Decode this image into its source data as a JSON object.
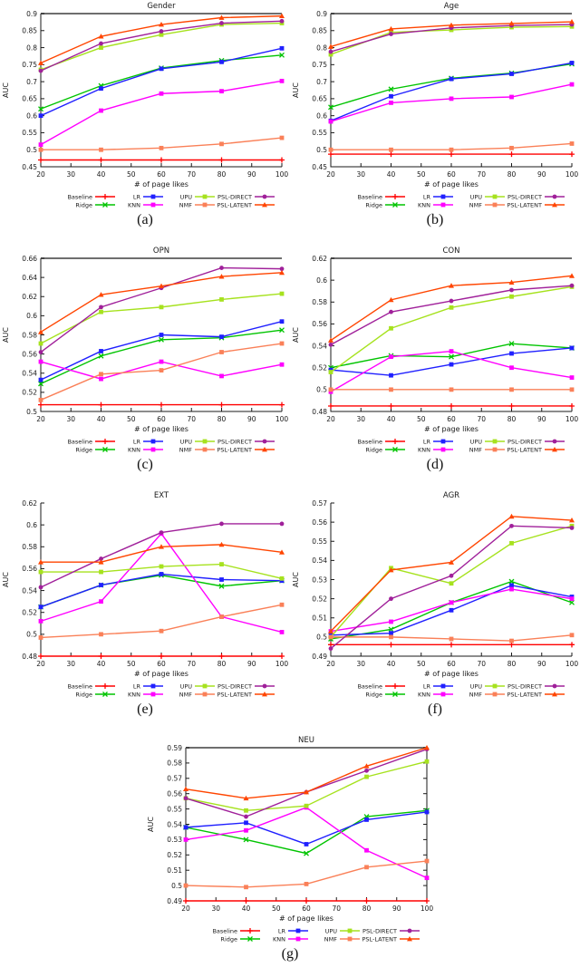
{
  "chart_shared": {
    "xlabel": "# of page likes",
    "ylabel": "AUC",
    "x": [
      20,
      40,
      60,
      80,
      100
    ],
    "xlim": [
      20,
      100
    ],
    "xticks": [
      20,
      30,
      40,
      50,
      60,
      70,
      80,
      90,
      100
    ],
    "grid": "off",
    "legend_position": "bottom",
    "legend_order": [
      "Baseline",
      "Ridge",
      "LR",
      "KNN",
      "UPU",
      "NMF",
      "PSL-DIRECT",
      "PSL-LATENT"
    ],
    "series_styles": {
      "Baseline": {
        "color": "#ff0000",
        "marker": "plus"
      },
      "Ridge": {
        "color": "#00c400",
        "marker": "x"
      },
      "LR": {
        "color": "#2020ff",
        "marker": "square"
      },
      "KNN": {
        "color": "#ff00ff",
        "marker": "square"
      },
      "UPU": {
        "color": "#a6e21e",
        "marker": "square"
      },
      "NMF": {
        "color": "#fa8058",
        "marker": "square"
      },
      "PSL-DIRECT": {
        "color": "#a0209a",
        "marker": "circle"
      },
      "PSL-LATENT": {
        "color": "#ff4500",
        "marker": "triangle"
      }
    },
    "top_border_color": "#6e6e6e"
  },
  "chart_data": [
    {
      "id": "gender",
      "type": "line",
      "title": "Gender",
      "caption": "(a)",
      "ylim": [
        0.45,
        0.9
      ],
      "ystep": 0.05,
      "border": {
        "top": true,
        "right": false
      },
      "series": [
        {
          "name": "Baseline",
          "values": [
            0.47,
            0.47,
            0.47,
            0.47,
            0.47
          ]
        },
        {
          "name": "Ridge",
          "values": [
            0.62,
            0.688,
            0.74,
            0.762,
            0.778
          ]
        },
        {
          "name": "LR",
          "values": [
            0.6,
            0.68,
            0.738,
            0.758,
            0.798
          ]
        },
        {
          "name": "KNN",
          "values": [
            0.515,
            0.615,
            0.665,
            0.672,
            0.702
          ]
        },
        {
          "name": "UPU",
          "values": [
            0.735,
            0.8,
            0.838,
            0.868,
            0.872
          ]
        },
        {
          "name": "NMF",
          "values": [
            0.5,
            0.5,
            0.505,
            0.517,
            0.535
          ]
        },
        {
          "name": "PSL-DIRECT",
          "values": [
            0.732,
            0.812,
            0.848,
            0.872,
            0.878
          ]
        },
        {
          "name": "PSL-LATENT",
          "values": [
            0.755,
            0.833,
            0.868,
            0.888,
            0.893
          ]
        }
      ]
    },
    {
      "id": "age",
      "type": "line",
      "title": "Age",
      "caption": "(b)",
      "ylim": [
        0.45,
        0.9
      ],
      "ystep": 0.05,
      "border": {
        "top": true,
        "right": false
      },
      "series": [
        {
          "name": "Baseline",
          "values": [
            0.487,
            0.487,
            0.487,
            0.487,
            0.487
          ]
        },
        {
          "name": "Ridge",
          "values": [
            0.625,
            0.678,
            0.71,
            0.725,
            0.752
          ]
        },
        {
          "name": "LR",
          "values": [
            0.585,
            0.657,
            0.708,
            0.723,
            0.755
          ]
        },
        {
          "name": "KNN",
          "values": [
            0.583,
            0.638,
            0.65,
            0.655,
            0.692
          ]
        },
        {
          "name": "UPU",
          "values": [
            0.78,
            0.845,
            0.852,
            0.86,
            0.862
          ]
        },
        {
          "name": "NMF",
          "values": [
            0.5,
            0.5,
            0.5,
            0.505,
            0.518
          ]
        },
        {
          "name": "PSL-DIRECT",
          "values": [
            0.788,
            0.84,
            0.858,
            0.865,
            0.868
          ]
        },
        {
          "name": "PSL-LATENT",
          "values": [
            0.803,
            0.855,
            0.866,
            0.871,
            0.876
          ]
        }
      ]
    },
    {
      "id": "opn",
      "type": "line",
      "title": "OPN",
      "caption": "(c)",
      "ylim": [
        0.5,
        0.66
      ],
      "ystep": 0.02,
      "border": {
        "top": true,
        "right": false
      },
      "series": [
        {
          "name": "Baseline",
          "values": [
            0.507,
            0.507,
            0.507,
            0.507,
            0.507
          ]
        },
        {
          "name": "Ridge",
          "values": [
            0.529,
            0.558,
            0.575,
            0.577,
            0.585
          ]
        },
        {
          "name": "LR",
          "values": [
            0.533,
            0.563,
            0.58,
            0.578,
            0.594
          ]
        },
        {
          "name": "KNN",
          "values": [
            0.552,
            0.534,
            0.552,
            0.537,
            0.549
          ]
        },
        {
          "name": "UPU",
          "values": [
            0.571,
            0.604,
            0.609,
            0.617,
            0.623
          ]
        },
        {
          "name": "NMF",
          "values": [
            0.512,
            0.539,
            0.543,
            0.562,
            0.571
          ]
        },
        {
          "name": "PSL-DIRECT",
          "values": [
            0.562,
            0.609,
            0.629,
            0.65,
            0.649
          ]
        },
        {
          "name": "PSL-LATENT",
          "values": [
            0.583,
            0.622,
            0.631,
            0.641,
            0.645
          ]
        }
      ]
    },
    {
      "id": "con",
      "type": "line",
      "title": "CON",
      "caption": "(d)",
      "ylim": [
        0.48,
        0.62
      ],
      "ystep": 0.02,
      "border": {
        "top": true,
        "right": false
      },
      "series": [
        {
          "name": "Baseline",
          "values": [
            0.485,
            0.485,
            0.485,
            0.485,
            0.485
          ]
        },
        {
          "name": "Ridge",
          "values": [
            0.52,
            0.531,
            0.53,
            0.542,
            0.538
          ]
        },
        {
          "name": "LR",
          "values": [
            0.518,
            0.513,
            0.523,
            0.533,
            0.538
          ]
        },
        {
          "name": "KNN",
          "values": [
            0.498,
            0.53,
            0.535,
            0.52,
            0.511
          ]
        },
        {
          "name": "UPU",
          "values": [
            0.516,
            0.556,
            0.575,
            0.585,
            0.594
          ]
        },
        {
          "name": "NMF",
          "values": [
            0.5,
            0.5,
            0.5,
            0.5,
            0.5
          ]
        },
        {
          "name": "PSL-DIRECT",
          "values": [
            0.541,
            0.571,
            0.581,
            0.591,
            0.595
          ]
        },
        {
          "name": "PSL-LATENT",
          "values": [
            0.545,
            0.582,
            0.595,
            0.598,
            0.604
          ]
        }
      ]
    },
    {
      "id": "ext",
      "type": "line",
      "title": "EXT",
      "caption": "(e)",
      "ylim": [
        0.48,
        0.62
      ],
      "ystep": 0.02,
      "border": {
        "top": false,
        "right": false
      },
      "series": [
        {
          "name": "Baseline",
          "values": [
            0.48,
            0.48,
            0.48,
            0.48,
            0.48
          ]
        },
        {
          "name": "Ridge",
          "values": [
            0.525,
            0.545,
            0.554,
            0.544,
            0.549
          ]
        },
        {
          "name": "LR",
          "values": [
            0.525,
            0.545,
            0.555,
            0.55,
            0.549
          ]
        },
        {
          "name": "KNN",
          "values": [
            0.512,
            0.53,
            0.592,
            0.516,
            0.502
          ]
        },
        {
          "name": "UPU",
          "values": [
            0.557,
            0.557,
            0.562,
            0.564,
            0.551
          ]
        },
        {
          "name": "NMF",
          "values": [
            0.497,
            0.5,
            0.503,
            0.516,
            0.527
          ]
        },
        {
          "name": "PSL-DIRECT",
          "values": [
            0.543,
            0.569,
            0.593,
            0.601,
            0.601
          ]
        },
        {
          "name": "PSL-LATENT",
          "values": [
            0.566,
            0.566,
            0.58,
            0.582,
            0.575
          ]
        }
      ]
    },
    {
      "id": "agr",
      "type": "line",
      "title": "AGR",
      "caption": "(f)",
      "ylim": [
        0.49,
        0.57
      ],
      "ystep": 0.01,
      "border": {
        "top": false,
        "right": false
      },
      "series": [
        {
          "name": "Baseline",
          "values": [
            0.496,
            0.496,
            0.496,
            0.496,
            0.496
          ]
        },
        {
          "name": "Ridge",
          "values": [
            0.499,
            0.504,
            0.518,
            0.529,
            0.518
          ]
        },
        {
          "name": "LR",
          "values": [
            0.501,
            0.502,
            0.514,
            0.527,
            0.521
          ]
        },
        {
          "name": "KNN",
          "values": [
            0.503,
            0.508,
            0.518,
            0.525,
            0.52
          ]
        },
        {
          "name": "UPU",
          "values": [
            0.5,
            0.536,
            0.528,
            0.549,
            0.558
          ]
        },
        {
          "name": "NMF",
          "values": [
            0.5,
            0.5,
            0.499,
            0.498,
            0.501
          ]
        },
        {
          "name": "PSL-DIRECT",
          "values": [
            0.494,
            0.52,
            0.532,
            0.558,
            0.557
          ]
        },
        {
          "name": "PSL-LATENT",
          "values": [
            0.503,
            0.535,
            0.539,
            0.563,
            0.561
          ]
        }
      ]
    },
    {
      "id": "neu",
      "type": "line",
      "title": "NEU",
      "caption": "(g)",
      "ylim": [
        0.49,
        0.59
      ],
      "ystep": 0.01,
      "border": {
        "top": true,
        "right": true
      },
      "series": [
        {
          "name": "Baseline",
          "values": [
            0.49,
            0.49,
            0.49,
            0.49,
            0.49
          ]
        },
        {
          "name": "Ridge",
          "values": [
            0.538,
            0.53,
            0.521,
            0.545,
            0.549
          ]
        },
        {
          "name": "LR",
          "values": [
            0.538,
            0.541,
            0.527,
            0.543,
            0.548
          ]
        },
        {
          "name": "KNN",
          "values": [
            0.53,
            0.536,
            0.551,
            0.523,
            0.505
          ]
        },
        {
          "name": "UPU",
          "values": [
            0.557,
            0.549,
            0.552,
            0.571,
            0.581
          ]
        },
        {
          "name": "NMF",
          "values": [
            0.5,
            0.499,
            0.501,
            0.512,
            0.516
          ]
        },
        {
          "name": "PSL-DIRECT",
          "values": [
            0.557,
            0.545,
            0.561,
            0.575,
            0.589
          ]
        },
        {
          "name": "PSL-LATENT",
          "values": [
            0.563,
            0.557,
            0.561,
            0.578,
            0.59
          ]
        }
      ]
    }
  ]
}
